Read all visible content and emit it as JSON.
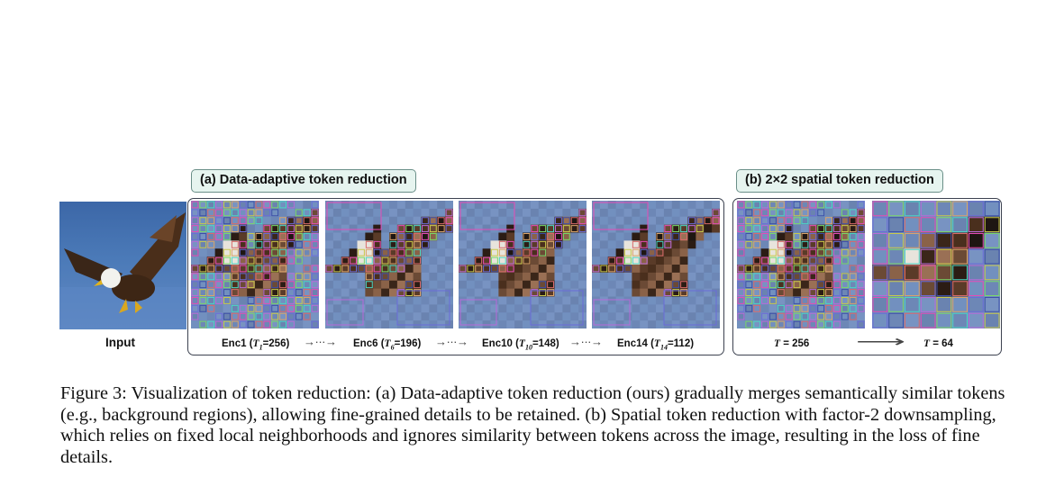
{
  "figure": {
    "panel_a_title": "(a) Data-adaptive token reduction",
    "panel_b_title": "(b) 2×2 spatial token reduction",
    "input_label": "Input",
    "stages_a": [
      {
        "name": "Enc1",
        "sym": "T",
        "sub": "1",
        "value": "=256)"
      },
      {
        "name": "Enc6",
        "sym": "T",
        "sub": "6",
        "value": "=196)"
      },
      {
        "name": "Enc10",
        "sym": "T",
        "sub": "10",
        "value": "=148)"
      },
      {
        "name": "Enc14",
        "sym": "T",
        "sub": "14",
        "value": "=112)"
      }
    ],
    "stages_b": [
      {
        "sym": "T",
        "value": " = 256"
      },
      {
        "sym": "T",
        "value": " = 64"
      }
    ],
    "arrow_dotted": "→···→",
    "arrow_long": "⟶"
  },
  "caption": "Figure 3: Visualization of token reduction: (a) Data-adaptive token reduction (ours) gradually merges semantically similar tokens (e.g., background regions), allowing fine-grained details to be retained. (b) Spatial token reduction with factor-2 downsampling, which relies on fixed local neighborhoods and ignores similarity between tokens across the image, resulting in the loss of fine details."
}
